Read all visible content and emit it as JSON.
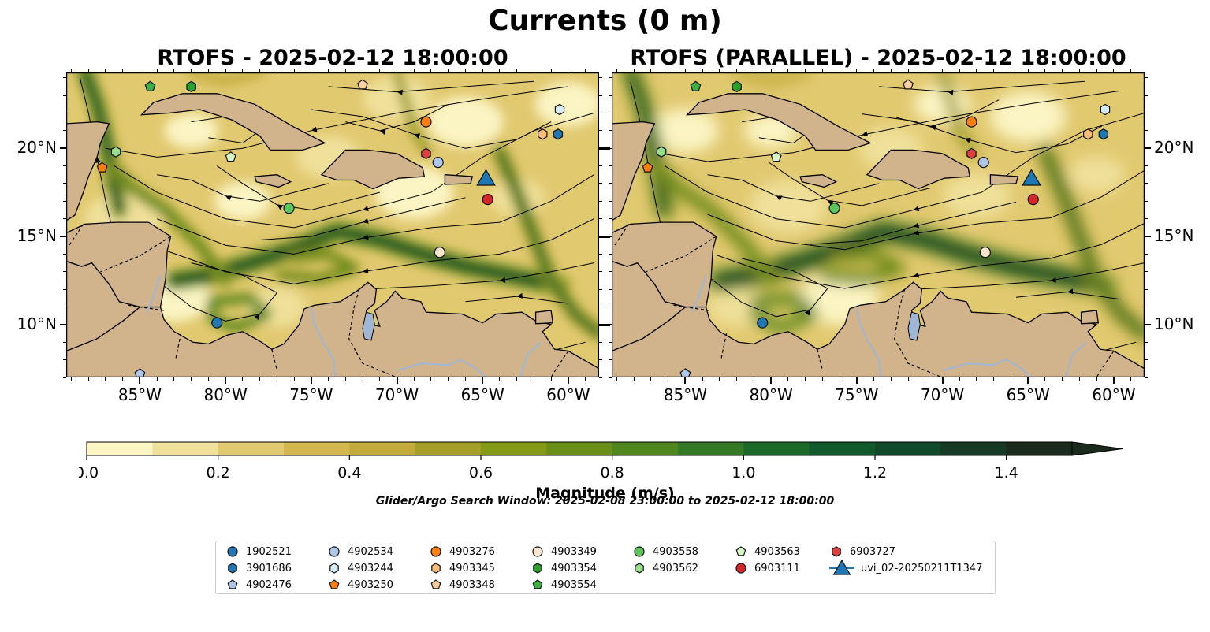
{
  "figure": {
    "title": "Currents (0 m)",
    "panels": [
      {
        "title": "RTOFS - 2025-02-12 18:00:00"
      },
      {
        "title": "RTOFS (PARALLEL) - 2025-02-12 18:00:00"
      }
    ],
    "search_window": "Glider/Argo Search Window: 2025-02-08 23:00:00 to 2025-02-12 18:00:00"
  },
  "colors": {
    "land": "#d2b48c",
    "water_features": "#9fb6d4",
    "ramp": [
      "#fbf4c3",
      "#efe09a",
      "#e1c970",
      "#d4b84f",
      "#c2aa3b",
      "#a59e28",
      "#859a16",
      "#6a8f18",
      "#4f861e",
      "#347a24",
      "#1c6a2a",
      "#105a2c",
      "#114a2a",
      "#163a24",
      "#1a2a1c"
    ]
  },
  "chart_data": {
    "type": "heatmap",
    "variable": "Magnitude",
    "units": "m/s",
    "colorbar": {
      "label": "Magnitude (m/s)",
      "levels": [
        0.0,
        0.1,
        0.2,
        0.3,
        0.4,
        0.5,
        0.6,
        0.7,
        0.8,
        0.9,
        1.0,
        1.1,
        1.2,
        1.3,
        1.4,
        1.5
      ],
      "ticks": [
        0.0,
        0.2,
        0.4,
        0.6,
        0.8,
        1.0,
        1.2,
        1.4
      ],
      "tick_labels": [
        "0.0",
        "0.2",
        "0.4",
        "0.6",
        "0.8",
        "1.0",
        "1.2",
        "1.4"
      ],
      "extend": "max"
    },
    "xlim": [
      -89.3,
      -58.2
    ],
    "ylim": [
      7.0,
      24.3
    ],
    "x_ticks": [
      -85,
      -80,
      -75,
      -70,
      -65,
      -60
    ],
    "x_tick_labels": [
      "85°W",
      "80°W",
      "75°W",
      "70°W",
      "65°W",
      "60°W"
    ],
    "y_ticks": [
      10,
      15,
      20
    ],
    "y_tick_labels": [
      "10°N",
      "15°N",
      "20°N"
    ],
    "instruments": [
      {
        "name": "1902521",
        "marker": "circle",
        "color": "#1f77b4",
        "positions": [
          [
            -80.5,
            10.1
          ]
        ]
      },
      {
        "name": "3901686",
        "marker": "hexagon",
        "color": "#1f77b4",
        "positions": [
          [
            -60.6,
            20.8
          ]
        ]
      },
      {
        "name": "4902476",
        "marker": "pentagon",
        "color": "#aec7e8",
        "positions": [
          [
            -85.0,
            7.2
          ]
        ]
      },
      {
        "name": "4902534",
        "marker": "circle",
        "color": "#aec7e8",
        "positions": [
          [
            -67.6,
            19.2
          ]
        ]
      },
      {
        "name": "4903244",
        "marker": "hexagon",
        "color": "#d6ecfa",
        "positions": [
          [
            -60.5,
            22.2
          ]
        ]
      },
      {
        "name": "4903250",
        "marker": "pentagon",
        "color": "#ff7f0e",
        "positions": [
          [
            -87.2,
            18.9
          ]
        ]
      },
      {
        "name": "4903276",
        "marker": "circle",
        "color": "#ff7f0e",
        "positions": [
          [
            -68.3,
            21.5
          ]
        ]
      },
      {
        "name": "4903345",
        "marker": "hexagon",
        "color": "#ffbb78",
        "positions": [
          [
            -61.5,
            20.8
          ]
        ]
      },
      {
        "name": "4903348",
        "marker": "pentagon",
        "color": "#fdd0a2",
        "positions": [
          [
            -72.0,
            23.6
          ]
        ]
      },
      {
        "name": "4903349",
        "marker": "circle",
        "color": "#fee6ce",
        "positions": [
          [
            -67.5,
            14.1
          ]
        ]
      },
      {
        "name": "4903354",
        "marker": "hexagon",
        "color": "#2ca02c",
        "positions": [
          [
            -82.0,
            23.5
          ]
        ]
      },
      {
        "name": "4903554",
        "marker": "pentagon",
        "color": "#3cb043",
        "positions": [
          [
            -84.4,
            23.5
          ]
        ]
      },
      {
        "name": "4903558",
        "marker": "circle",
        "color": "#5bc45b",
        "positions": [
          [
            -76.3,
            16.6
          ]
        ]
      },
      {
        "name": "4903562",
        "marker": "hexagon",
        "color": "#98df8a",
        "positions": [
          [
            -86.4,
            19.8
          ]
        ]
      },
      {
        "name": "4903563",
        "marker": "pentagon",
        "color": "#d8f5c8",
        "positions": [
          [
            -79.7,
            19.5
          ]
        ]
      },
      {
        "name": "6903111",
        "marker": "circle",
        "color": "#d62728",
        "positions": [
          [
            -64.7,
            17.1
          ]
        ]
      },
      {
        "name": "6903727",
        "marker": "hexagon",
        "color": "#e04040",
        "positions": [
          [
            -68.3,
            19.7
          ]
        ]
      },
      {
        "name": "uvi_02-20250211T1347",
        "marker": "triangle",
        "color": "#1f77b4",
        "positions": [
          [
            -64.8,
            18.2
          ]
        ]
      }
    ]
  },
  "legend": {
    "columns": [
      [
        "1902521",
        "3901686",
        "4902476"
      ],
      [
        "4902534",
        "4903244",
        "4903250"
      ],
      [
        "4903276",
        "4903345",
        "4903348"
      ],
      [
        "4903349",
        "4903354",
        "4903554"
      ],
      [
        "4903558",
        "4903562"
      ],
      [
        "4903563",
        "6903111"
      ],
      [
        "6903727",
        "uvi_02-20250211T1347"
      ]
    ]
  }
}
